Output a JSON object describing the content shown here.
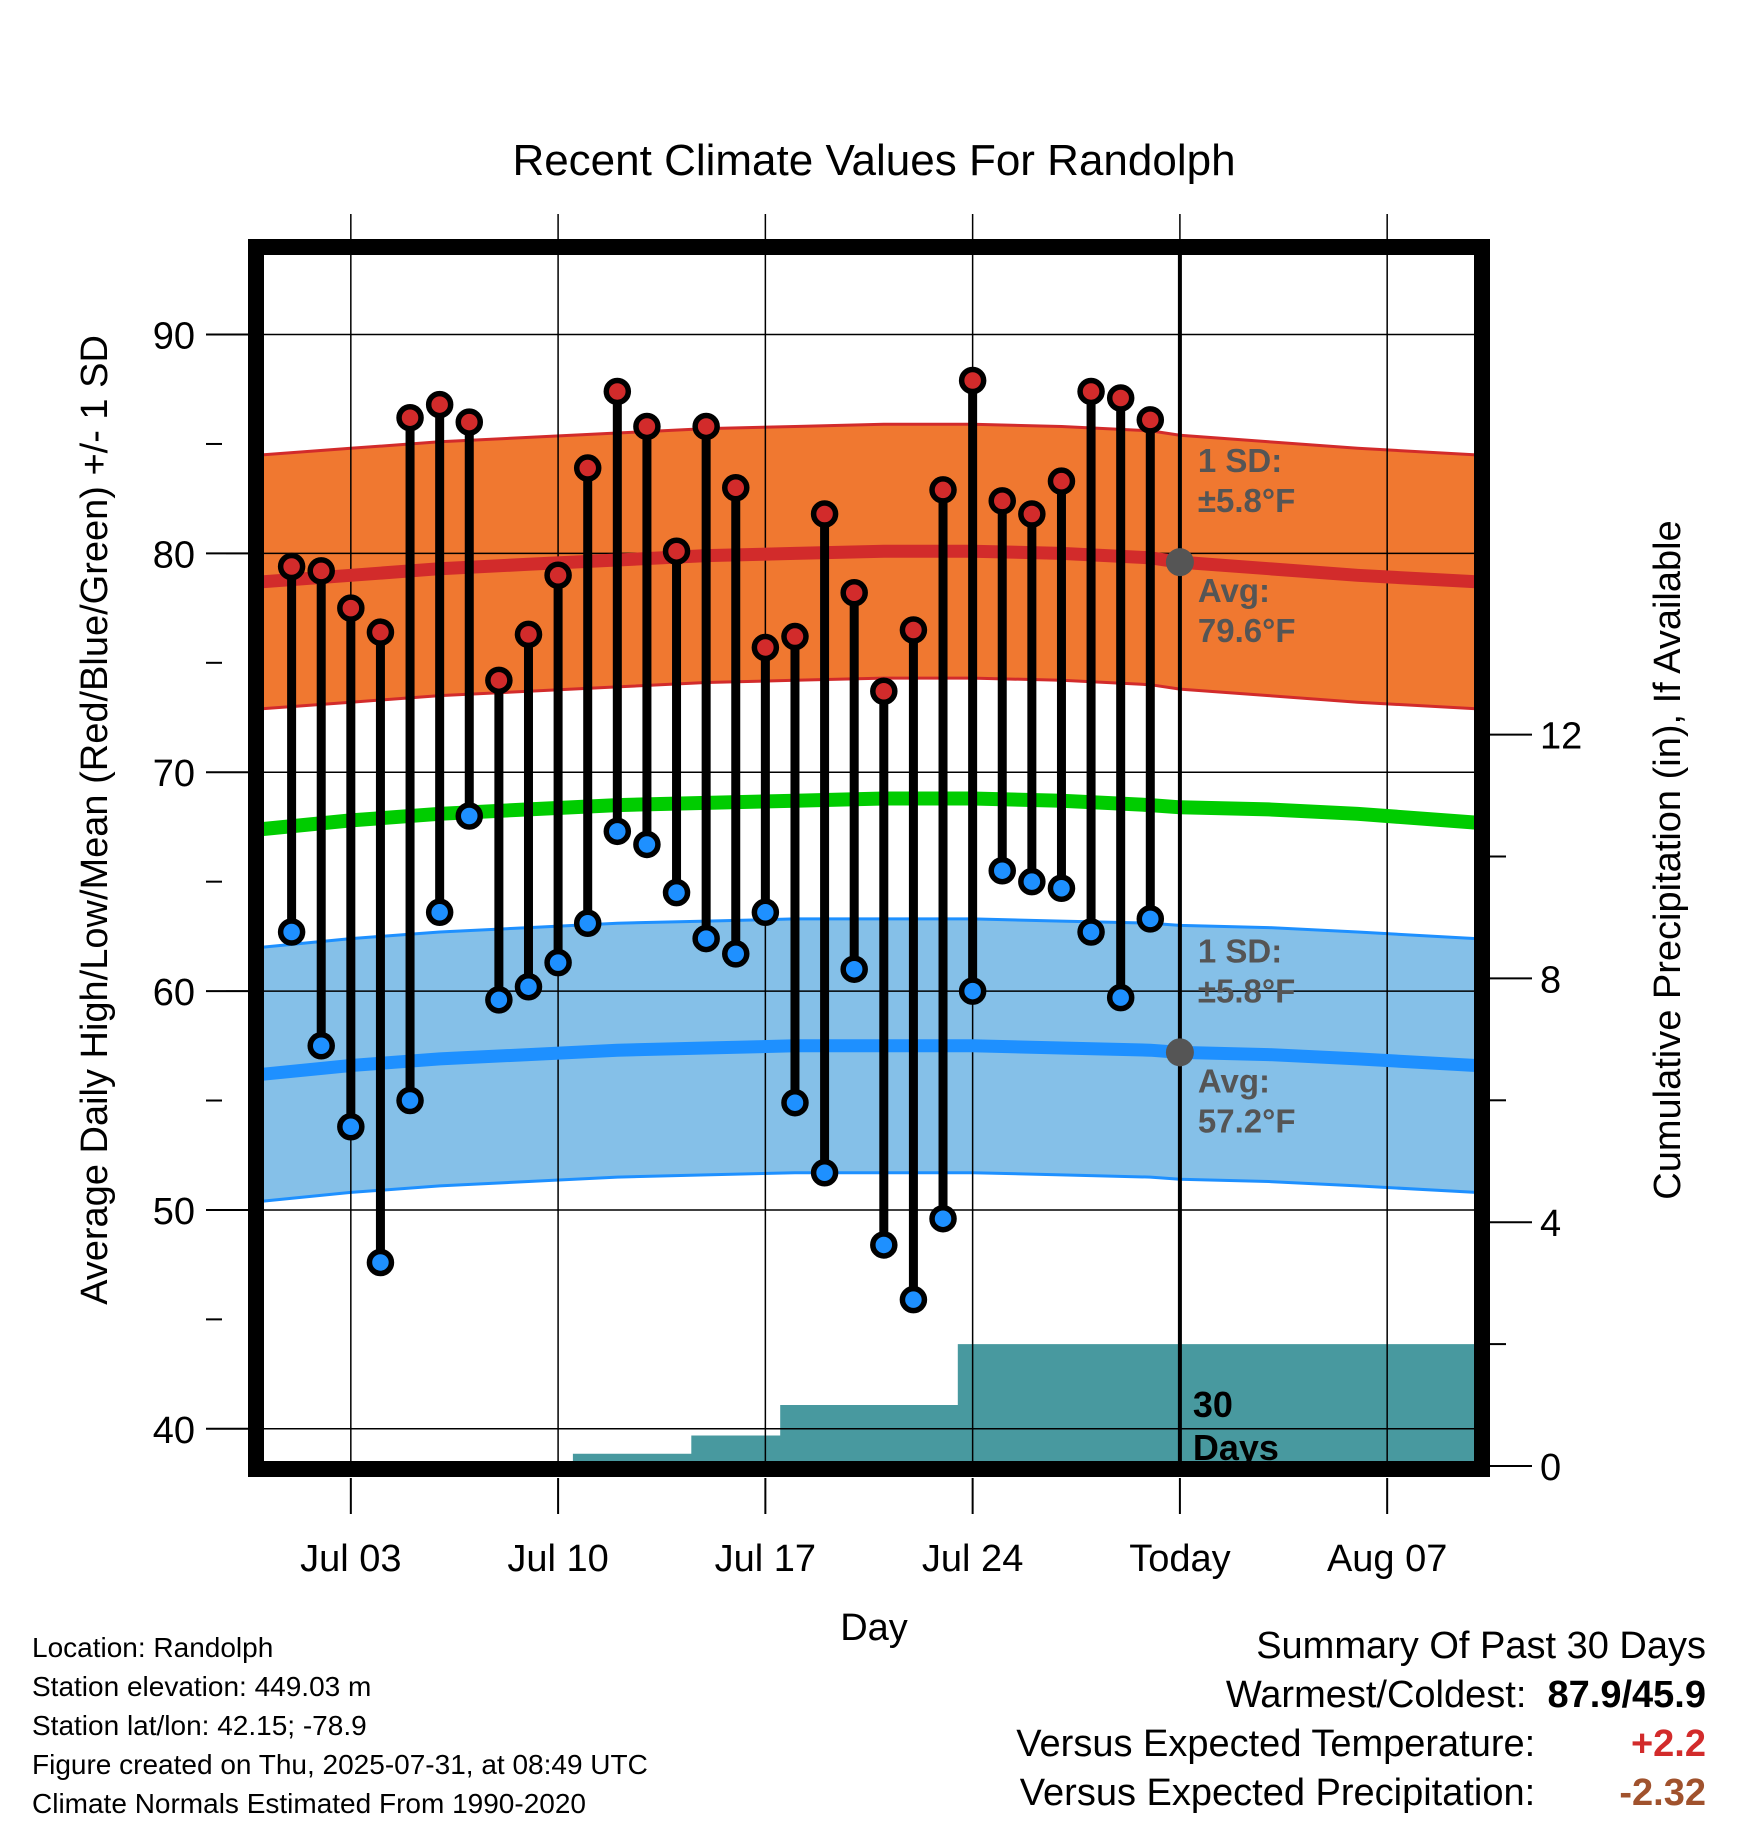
{
  "chart_data": {
    "type": "line",
    "title": "Recent Climate Values For Randolph",
    "xlabel": "Day",
    "ylabel_left": "Average Daily High/Low/Mean (Red/Blue/Green) +/- 1 SD",
    "ylabel_right": "Cumulative Precipitation (in), If Available",
    "x_tick_labels": [
      "Jul 03",
      "Jul 10",
      "Jul 17",
      "Jul 24",
      "Today",
      "Aug 07"
    ],
    "y_left_ticks": [
      40,
      50,
      60,
      70,
      80,
      90
    ],
    "y_right_ticks": [
      0,
      4,
      8,
      12
    ],
    "x_range_days": [
      -31,
      10
    ],
    "ylim_left": [
      38.3,
      94
    ],
    "ylim_right": [
      0,
      20
    ],
    "grid": true,
    "today_index": 30,
    "daily_high": [
      79.4,
      79.2,
      77.5,
      76.4,
      86.2,
      86.8,
      86.0,
      74.2,
      76.3,
      79.0,
      83.9,
      87.4,
      85.8,
      80.1,
      85.8,
      83.0,
      75.7,
      76.2,
      81.8,
      78.2,
      73.7,
      76.5,
      82.9,
      87.9,
      82.4,
      81.8,
      83.3,
      87.4,
      87.1,
      86.1
    ],
    "daily_low": [
      62.7,
      57.5,
      53.8,
      47.6,
      55.0,
      63.6,
      68.0,
      59.6,
      60.2,
      61.3,
      63.1,
      67.3,
      66.7,
      64.5,
      62.4,
      61.7,
      63.6,
      54.9,
      51.7,
      61.0,
      48.4,
      45.9,
      49.6,
      60.0,
      65.5,
      65.0,
      64.7,
      62.7,
      59.7,
      63.3
    ],
    "normal_high": [
      78.7,
      79.0,
      79.3,
      79.5,
      79.7,
      79.9,
      80.0,
      80.1,
      80.1,
      80.0,
      79.8,
      79.6,
      79.3,
      79.0,
      78.7
    ],
    "normal_high_x": [
      -31,
      -28,
      -25,
      -22,
      -19,
      -16,
      -13,
      -10,
      -7,
      -4,
      -1,
      0,
      3,
      6,
      10
    ],
    "normal_low": [
      56.2,
      56.6,
      56.9,
      57.1,
      57.3,
      57.4,
      57.5,
      57.5,
      57.5,
      57.4,
      57.3,
      57.2,
      57.1,
      56.9,
      56.6
    ],
    "normal_mean": [
      67.4,
      67.8,
      68.1,
      68.3,
      68.5,
      68.6,
      68.7,
      68.8,
      68.8,
      68.7,
      68.5,
      68.4,
      68.3,
      68.1,
      67.7
    ],
    "sd_high": 5.8,
    "sd_low": 5.8,
    "cumulative_precip_in": [
      0,
      0,
      0,
      0,
      0,
      0,
      0,
      0,
      0,
      0,
      0.2,
      0.2,
      0.2,
      0.2,
      0.5,
      0.5,
      0.5,
      1.0,
      1.0,
      1.0,
      1.0,
      1.0,
      1.0,
      2.0,
      2.0,
      2.0,
      2.0,
      2.0,
      2.0,
      2.0,
      2.0
    ],
    "annotations": {
      "high_sd": "1 SD:",
      "high_sd_value": "±5.8°F",
      "high_avg": "Avg:",
      "high_avg_value": "79.6°F",
      "low_sd": "1 SD:",
      "low_sd_value": "±5.8°F",
      "low_avg": "Avg:",
      "low_avg_value": "57.2°F",
      "days_line1": "30",
      "days_line2": "Days"
    },
    "colors": {
      "high_band": "#f07830",
      "high_line": "#d22b2b",
      "low_band": "#85c0e8",
      "low_line": "#1e90ff",
      "mean_line": "#00cc00",
      "precip": "#48999f",
      "high_dot": "#d22b2b",
      "low_dot": "#1e90ff",
      "today_dot": "#555555"
    }
  },
  "footer": {
    "location": "Location: Randolph",
    "elevation": "Station elevation: 449.03 m",
    "latlon": "Station lat/lon: 42.15; -78.9",
    "created": "Figure created on Thu, 2025-07-31, at 08:49 UTC",
    "normals": "Climate Normals Estimated From 1990-2020"
  },
  "summary": {
    "heading": "Summary Of Past 30 Days",
    "warm_cold_label": "Warmest/Coldest:",
    "warm_cold_value": "87.9/45.9",
    "temp_label": "Versus Expected Temperature:",
    "temp_value": "+2.2",
    "precip_label": "Versus Expected Precipitation:",
    "precip_value": "-2.32"
  }
}
